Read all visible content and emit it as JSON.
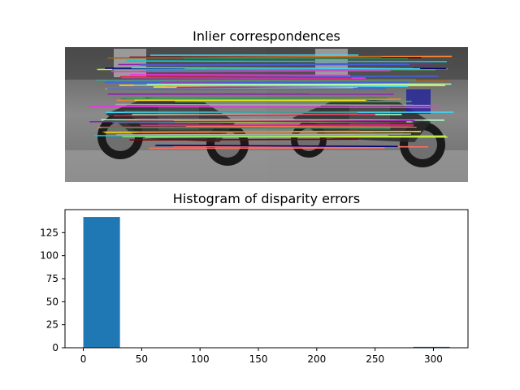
{
  "chart_data": [
    {
      "type": "image",
      "title": "Inlier correspondences",
      "description_marks": "stereo motorcycle pair with colored match lines",
      "match_colors": [
        "#e6194b",
        "#3cb44b",
        "#ffe119",
        "#4363d8",
        "#f58231",
        "#911eb4",
        "#42d4f4",
        "#f032e6",
        "#bfef45",
        "#469990",
        "#9a6324",
        "#800000",
        "#aaffc3",
        "#000075",
        "#a9a9a9",
        "#ff6f61",
        "#2e8b57",
        "#ff1493",
        "#00ced1",
        "#ffd700"
      ]
    },
    {
      "type": "bar",
      "title": "Histogram of disparity errors",
      "xlabel": "",
      "ylabel": "",
      "xlim": [
        -15.7,
        329.6
      ],
      "ylim": [
        0,
        150
      ],
      "xticks": [
        0,
        50,
        100,
        150,
        200,
        250,
        300
      ],
      "yticks": [
        0,
        25,
        50,
        75,
        100,
        125
      ],
      "bins": [
        {
          "x0": 0,
          "x1": 31.4,
          "value": 142
        },
        {
          "x0": 31.4,
          "x1": 62.8,
          "value": 0
        },
        {
          "x0": 62.8,
          "x1": 94.2,
          "value": 0
        },
        {
          "x0": 94.2,
          "x1": 125.6,
          "value": 0
        },
        {
          "x0": 125.6,
          "x1": 157.0,
          "value": 0
        },
        {
          "x0": 157.0,
          "x1": 188.4,
          "value": 0
        },
        {
          "x0": 188.4,
          "x1": 219.8,
          "value": 0
        },
        {
          "x0": 219.8,
          "x1": 251.2,
          "value": 0
        },
        {
          "x0": 251.2,
          "x1": 282.6,
          "value": 0
        },
        {
          "x0": 282.6,
          "x1": 314.0,
          "value": 1
        }
      ],
      "bar_color": "#1f77b4"
    }
  ]
}
